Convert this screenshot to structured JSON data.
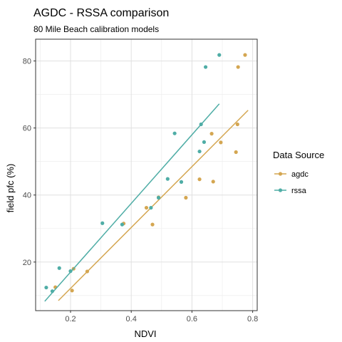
{
  "chart_data": {
    "type": "scatter",
    "title": "AGDC - RSSA comparison",
    "subtitle": "80 Mile Beach calibration models",
    "xlabel": "NDVI",
    "ylabel": "field pfc (%)",
    "xlim": [
      0.085,
      0.815
    ],
    "ylim": [
      5.5,
      86.5
    ],
    "xticks": [
      0.2,
      0.4,
      0.6,
      0.8
    ],
    "xtick_labels": [
      "0.2",
      "0.4",
      "0.6",
      "0.8"
    ],
    "yticks": [
      20,
      40,
      60,
      80
    ],
    "ytick_labels": [
      "20",
      "40",
      "60",
      "80"
    ],
    "grid": true,
    "legend": {
      "title": "Data Source",
      "position": "right"
    },
    "series": [
      {
        "name": "agdc",
        "color": "#d4a651",
        "points": [
          [
            0.15,
            12.5
          ],
          [
            0.205,
            11.5
          ],
          [
            0.21,
            18.0
          ],
          [
            0.255,
            17.2
          ],
          [
            0.375,
            31.5
          ],
          [
            0.45,
            36.2
          ],
          [
            0.47,
            31.2
          ],
          [
            0.49,
            39.3
          ],
          [
            0.58,
            39.2
          ],
          [
            0.625,
            44.7
          ],
          [
            0.665,
            58.3
          ],
          [
            0.67,
            44.0
          ],
          [
            0.695,
            55.7
          ],
          [
            0.745,
            52.8
          ],
          [
            0.75,
            61.1
          ],
          [
            0.752,
            78.2
          ],
          [
            0.775,
            81.8
          ]
        ],
        "trend": [
          [
            0.16,
            8.5
          ],
          [
            0.785,
            65.3
          ]
        ]
      },
      {
        "name": "rssa",
        "color": "#4fada6",
        "points": [
          [
            0.12,
            12.4
          ],
          [
            0.14,
            11.3
          ],
          [
            0.163,
            18.2
          ],
          [
            0.2,
            17.3
          ],
          [
            0.305,
            31.6
          ],
          [
            0.37,
            31.2
          ],
          [
            0.465,
            36.2
          ],
          [
            0.49,
            39.2
          ],
          [
            0.52,
            44.8
          ],
          [
            0.543,
            58.4
          ],
          [
            0.565,
            43.9
          ],
          [
            0.625,
            53.0
          ],
          [
            0.63,
            61.1
          ],
          [
            0.64,
            55.8
          ],
          [
            0.645,
            78.2
          ],
          [
            0.69,
            81.8
          ]
        ],
        "trend": [
          [
            0.115,
            8.3
          ],
          [
            0.69,
            67.2
          ]
        ]
      }
    ]
  }
}
